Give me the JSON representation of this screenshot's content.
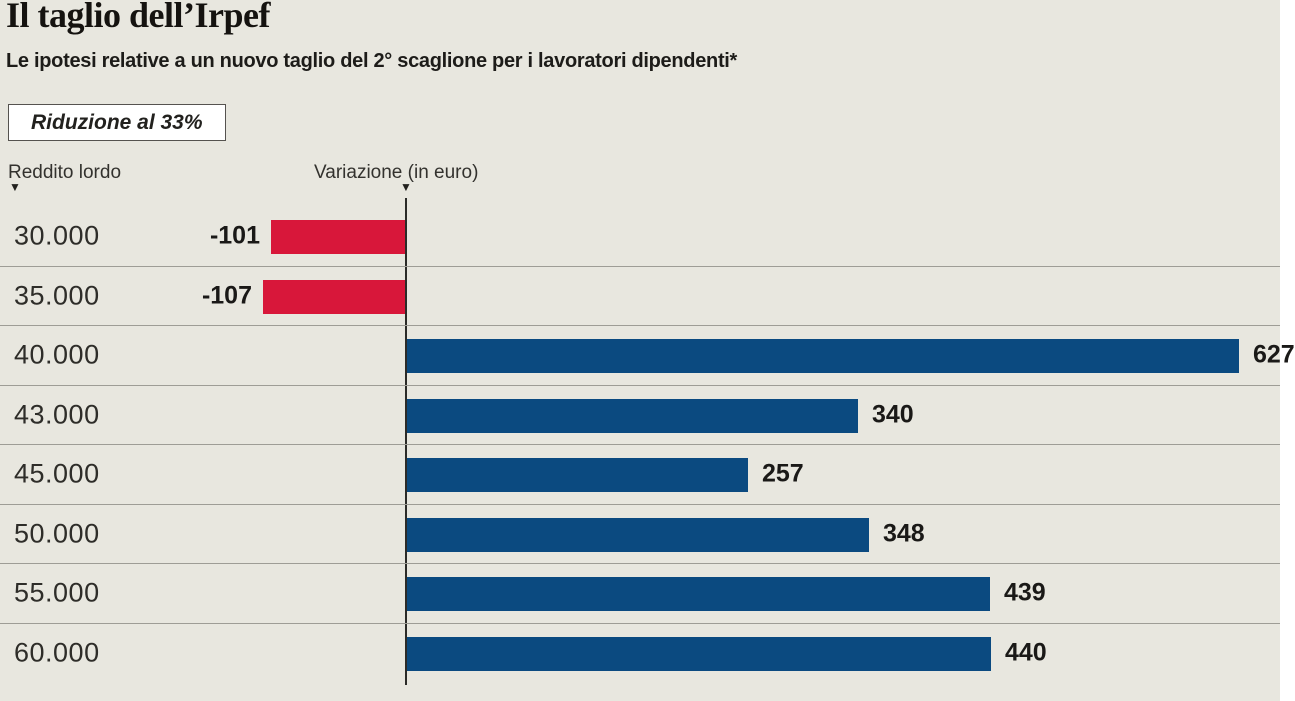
{
  "header": {
    "title": "Il taglio dell’Irpef",
    "subtitle": "Le ipotesi relative a un nuovo taglio del 2° scaglione per i lavoratori dipendenti*",
    "scenario_label": "Riduzione al 33%"
  },
  "columns": {
    "income": "Reddito lordo",
    "variation": "Variazione (in euro)",
    "marker": "▼"
  },
  "chart_data": {
    "type": "bar",
    "orientation": "horizontal",
    "title": "Il taglio dell’Irpef",
    "subtitle": "Le ipotesi relative a un nuovo taglio del 2° scaglione per i lavoratori dipendenti*",
    "scenario": "Riduzione al 33%",
    "ylabel": "Reddito lordo",
    "xlabel": "Variazione (in euro)",
    "categories": [
      "30.000",
      "35.000",
      "40.000",
      "43.000",
      "45.000",
      "50.000",
      "55.000",
      "60.000"
    ],
    "values": [
      -101,
      -107,
      627,
      340,
      257,
      348,
      439,
      440
    ],
    "value_labels": [
      "-101",
      "-107",
      "627",
      "340",
      "257",
      "348",
      "439",
      "440"
    ],
    "baseline": 0,
    "negative_color": "#d8173a",
    "positive_color": "#0b4a80",
    "grid": "row-separators",
    "legend": "none"
  },
  "colors": {
    "background": "#e8e7df",
    "negative_bar": "#d8173a",
    "positive_bar": "#0b4a80",
    "axis_line": "#2b2b28",
    "separator": "#9e9d96",
    "text_dark": "#1a1917"
  }
}
